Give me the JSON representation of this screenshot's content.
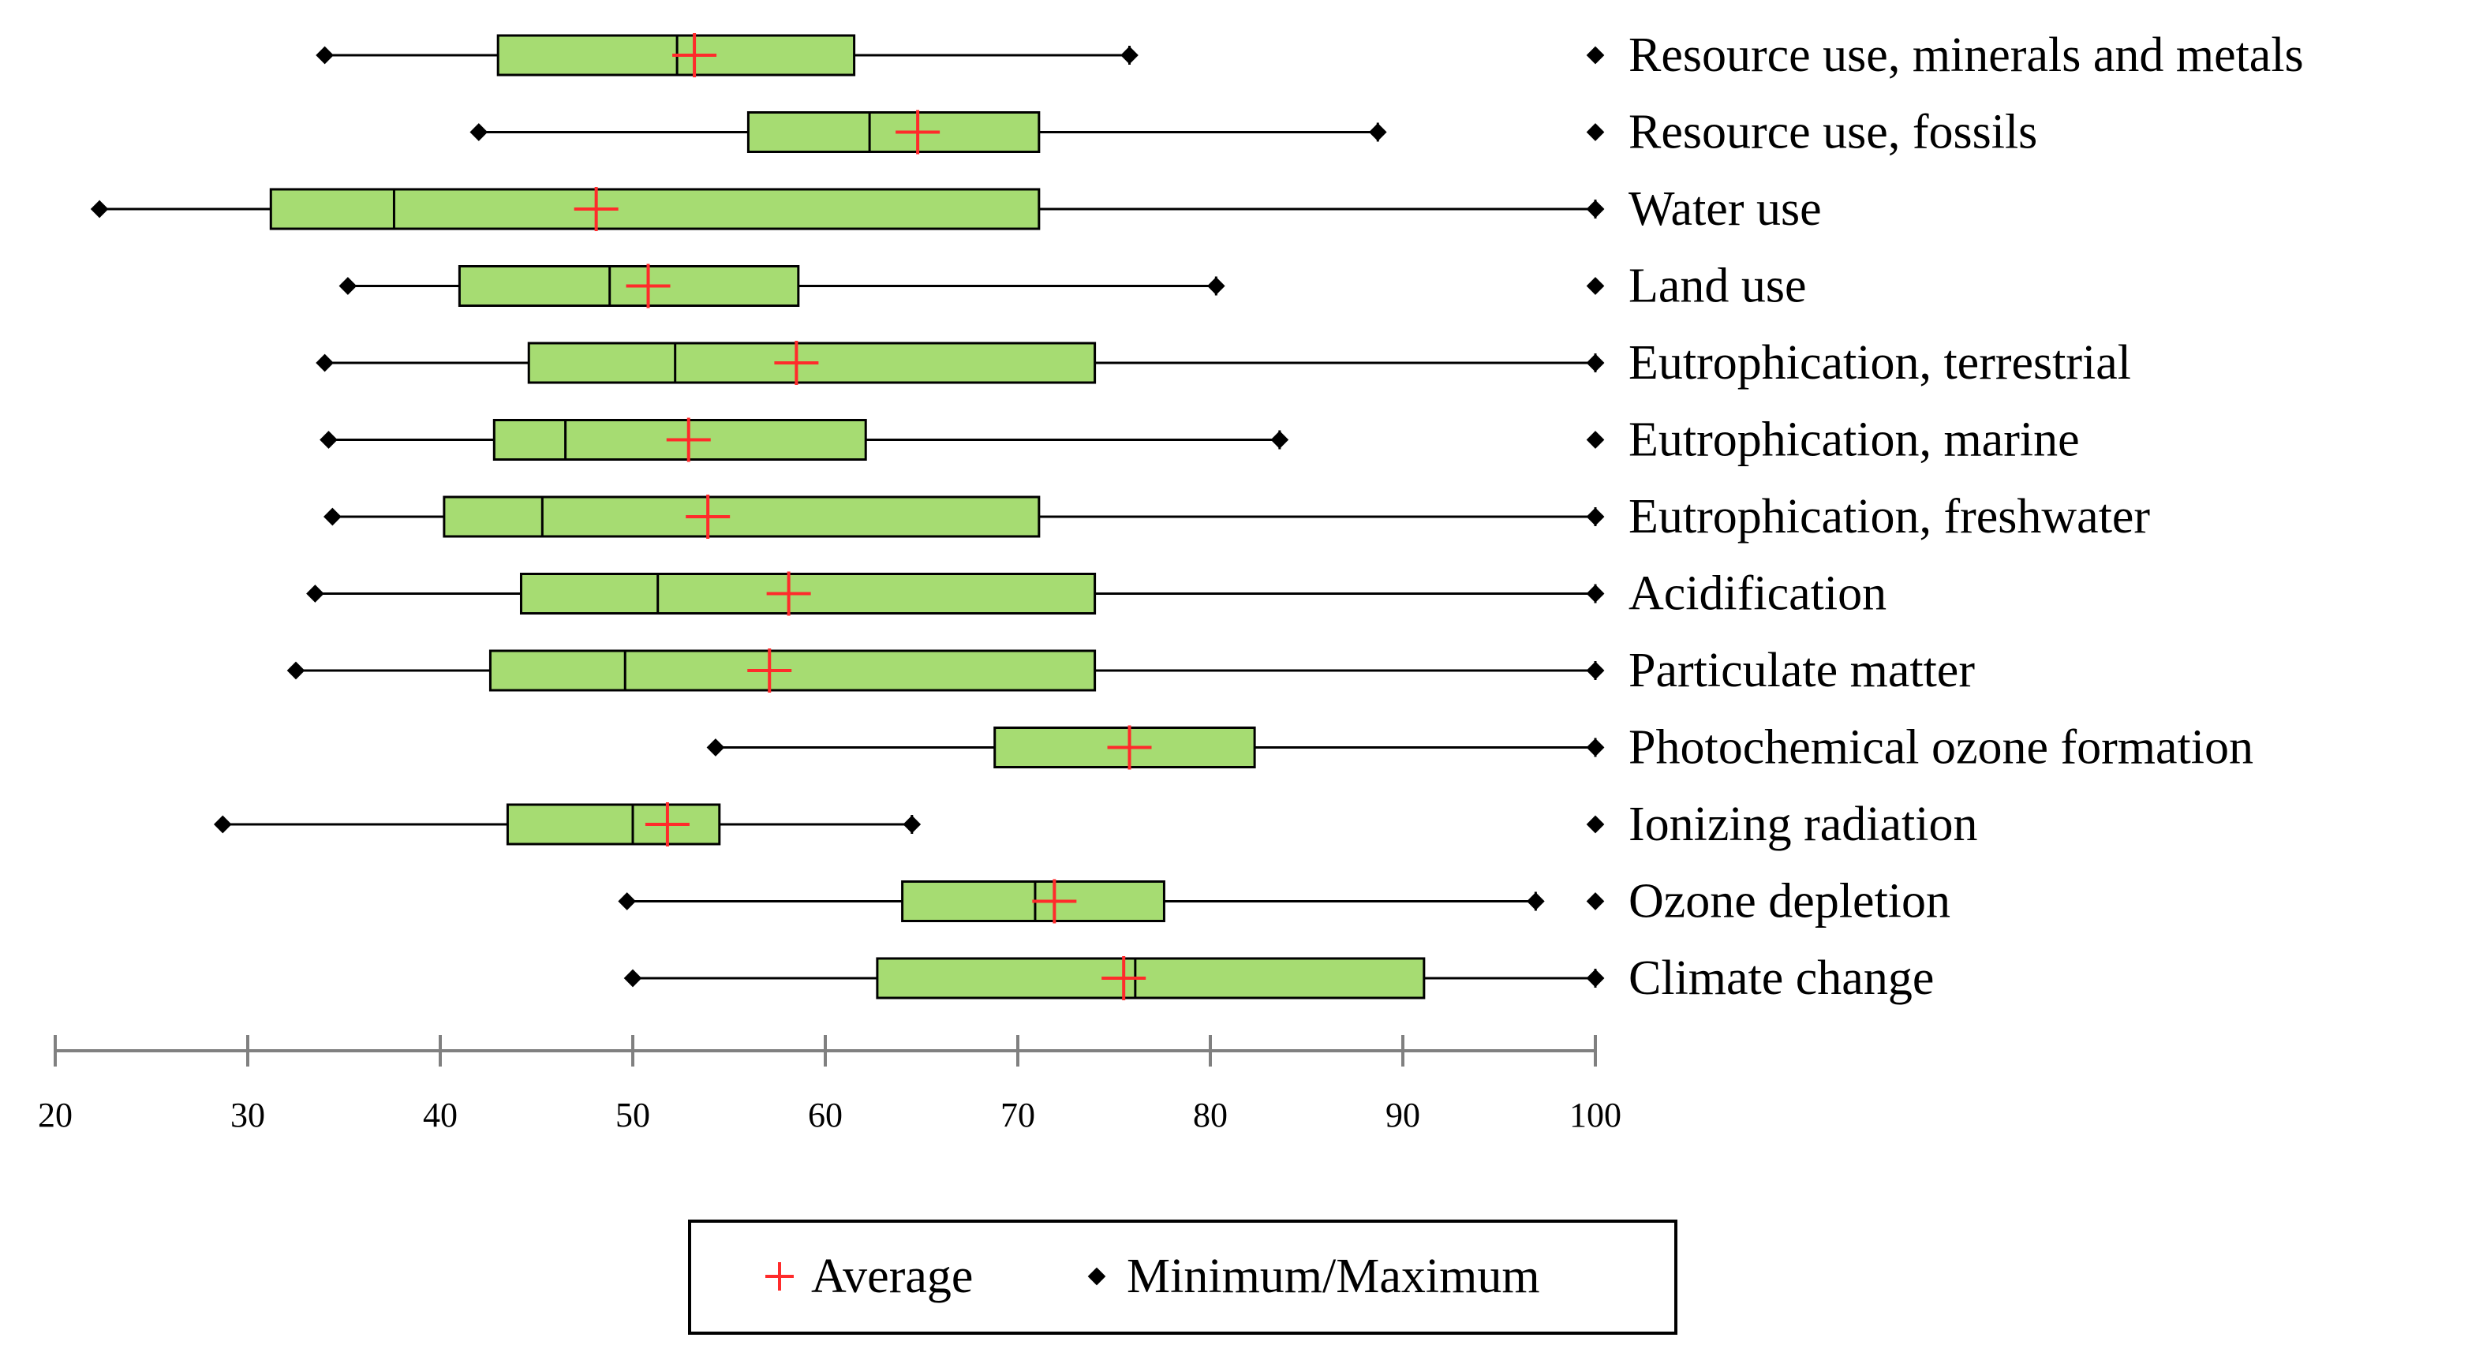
{
  "chart_data": {
    "type": "boxplot",
    "orientation": "horizontal",
    "xlim": [
      20,
      100
    ],
    "xticks": [
      20,
      30,
      40,
      50,
      60,
      70,
      80,
      90,
      100
    ],
    "grid": false,
    "colors": {
      "box": "#a6dc72",
      "average": "#ff2b2b",
      "minmax": "#000000"
    },
    "legend": {
      "placement": "bottom-center",
      "items": [
        {
          "label": "Average",
          "symbol": "+",
          "icon": "plus-icon"
        },
        {
          "label": "Minimum/Maximum",
          "symbol": "◆",
          "icon": "diamond-icon"
        }
      ]
    },
    "categories": [
      {
        "label": "Resource use, minerals and metals",
        "min": 34,
        "q1": 43,
        "median": 52.3,
        "q3": 61.5,
        "max": 75.8,
        "average": 53.2
      },
      {
        "label": "Resource use, fossils",
        "min": 42,
        "q1": 56,
        "median": 62.3,
        "q3": 71.1,
        "max": 88.7,
        "average": 64.8
      },
      {
        "label": "Water use",
        "min": 22.3,
        "q1": 31.2,
        "median": 37.6,
        "q3": 71.1,
        "max": 100,
        "average": 48.1
      },
      {
        "label": "Land use",
        "min": 35.2,
        "q1": 41,
        "median": 48.8,
        "q3": 58.6,
        "max": 80.3,
        "average": 50.8
      },
      {
        "label": "Eutrophication, terrestrial",
        "min": 34,
        "q1": 44.6,
        "median": 52.2,
        "q3": 74.0,
        "max": 100,
        "average": 58.5
      },
      {
        "label": "Eutrophication, marine",
        "min": 34.2,
        "q1": 42.8,
        "median": 46.5,
        "q3": 62.1,
        "max": 83.6,
        "average": 52.9
      },
      {
        "label": "Eutrophication, freshwater",
        "min": 34.4,
        "q1": 40.2,
        "median": 45.3,
        "q3": 71.1,
        "max": 100,
        "average": 53.9
      },
      {
        "label": "Acidification",
        "min": 33.5,
        "q1": 44.2,
        "median": 51.3,
        "q3": 74.0,
        "max": 100,
        "average": 58.1
      },
      {
        "label": "Particulate matter",
        "min": 32.5,
        "q1": 42.6,
        "median": 49.6,
        "q3": 74.0,
        "max": 100,
        "average": 57.1
      },
      {
        "label": "Photochemical ozone formation",
        "min": 54.3,
        "q1": 68.8,
        "median": 75.8,
        "q3": 82.3,
        "max": 100,
        "average": 75.8
      },
      {
        "label": "Ionizing radiation",
        "min": 28.7,
        "q1": 43.5,
        "median": 50.0,
        "q3": 54.5,
        "max": 64.5,
        "average": 51.8
      },
      {
        "label": "Ozone depletion",
        "min": 49.7,
        "q1": 64.0,
        "median": 70.9,
        "q3": 77.6,
        "max": 96.9,
        "average": 71.9
      },
      {
        "label": "Climate change",
        "min": 50.0,
        "q1": 62.7,
        "median": 76.1,
        "q3": 91.1,
        "max": 100,
        "average": 75.5
      }
    ]
  }
}
